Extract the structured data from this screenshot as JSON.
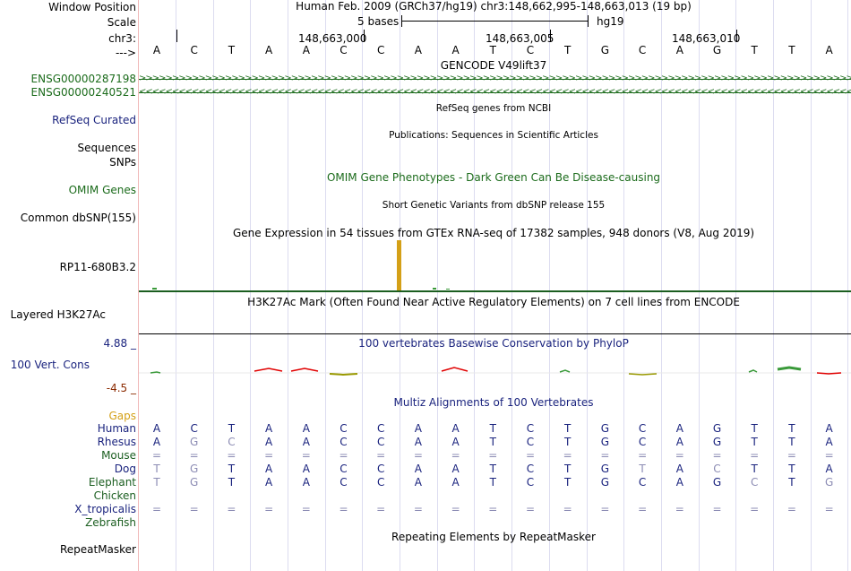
{
  "header": {
    "window_position_label": "Window Position",
    "scale_label": "Scale",
    "chrom_label": "chr3:",
    "arrow_label": "--->",
    "assembly_text": "Human Feb. 2009 (GRCh37/hg19)   chr3:148,662,995-148,663,013 (19 bp)",
    "scale_text": "5 bases",
    "assembly_short": "hg19",
    "positions": [
      "148,663,000",
      "148,663,005",
      "148,663,010"
    ]
  },
  "bases": [
    "A",
    "C",
    "T",
    "A",
    "A",
    "C",
    "C",
    "A",
    "A",
    "T",
    "C",
    "T",
    "G",
    "C",
    "A",
    "G",
    "T",
    "T",
    "A"
  ],
  "tracks": {
    "gencode_title": "GENCODE V49lift37",
    "gencode_genes": [
      {
        "name": "ENSG00000287198",
        "strand": ">"
      },
      {
        "name": "ENSG00000240521",
        "strand": "<"
      }
    ],
    "refseq_label": "RefSeq Curated",
    "refseq_title": "RefSeq genes from NCBI",
    "sequences_label": "Sequences",
    "publications_title": "Publications: Sequences in Scientific Articles",
    "snps_label": "SNPs",
    "omim_label": "OMIM Genes",
    "omim_title": "OMIM Gene Phenotypes - Dark Green Can Be Disease-causing",
    "dbsnp_label": "Common dbSNP(155)",
    "dbsnp_title": "Short Genetic Variants from dbSNP release 155",
    "gtex_title": "Gene Expression in 54 tissues from GTEx RNA-seq of 17382 samples, 948 donors (V8, Aug 2019)",
    "gtex_gene_label": "RP11-680B3.2",
    "h3k27ac_title": "H3K27Ac Mark (Often Found Near Active Regulatory Elements) on 7 cell lines from ENCODE",
    "h3k27ac_label": "Layered H3K27Ac",
    "phylop_max": "4.88 _",
    "phylop_min": "-4.5 _",
    "phylop_label": "100 Vert. Cons",
    "phylop_title": "100 vertebrates Basewise Conservation by PhyloP",
    "multiz_title": "Multiz Alignments of 100 Vertebrates",
    "gaps_label": "Gaps",
    "repeatmasker_label": "RepeatMasker",
    "repeatmasker_title": "Repeating Elements by RepeatMasker"
  },
  "species": [
    {
      "name": "Human",
      "color": "#1a237e",
      "seq": [
        "A",
        "C",
        "T",
        "A",
        "A",
        "C",
        "C",
        "A",
        "A",
        "T",
        "C",
        "T",
        "G",
        "C",
        "A",
        "G",
        "T",
        "T",
        "A"
      ]
    },
    {
      "name": "Rhesus",
      "color": "#1a237e",
      "seq": [
        "A",
        "G",
        "C",
        "A",
        "A",
        "C",
        "C",
        "A",
        "A",
        "T",
        "C",
        "T",
        "G",
        "C",
        "A",
        "G",
        "T",
        "T",
        "A"
      ]
    },
    {
      "name": "Mouse",
      "color": "#1b5e20",
      "seq": [
        "=",
        "=",
        "=",
        "=",
        "=",
        "=",
        "=",
        "=",
        "=",
        "=",
        "=",
        "=",
        "=",
        "=",
        "=",
        "=",
        "=",
        "=",
        "="
      ]
    },
    {
      "name": "Dog",
      "color": "#1a237e",
      "seq": [
        "T",
        "G",
        "T",
        "A",
        "A",
        "C",
        "C",
        "A",
        "A",
        "T",
        "C",
        "T",
        "G",
        "T",
        "A",
        "C",
        "T",
        "T",
        "A"
      ]
    },
    {
      "name": "Elephant",
      "color": "#1b5e20",
      "seq": [
        "T",
        "G",
        "T",
        "A",
        "A",
        "C",
        "C",
        "A",
        "A",
        "T",
        "C",
        "T",
        "G",
        "C",
        "A",
        "G",
        "C",
        "T",
        "G"
      ]
    },
    {
      "name": "Chicken",
      "color": "#1b5e20",
      "seq": []
    },
    {
      "name": "X_tropicalis",
      "color": "#1a237e",
      "seq": [
        "=",
        "=",
        "=",
        "=",
        "=",
        "=",
        "=",
        "=",
        "=",
        "=",
        "=",
        "=",
        "=",
        "=",
        "=",
        "=",
        "=",
        "=",
        "="
      ]
    },
    {
      "name": "Zebrafish",
      "color": "#1b5e20",
      "seq": []
    }
  ],
  "colors": {
    "gene_green": "#1b6b1b",
    "gtex_bar": "#d4a017",
    "phylop_pos": "#e00000",
    "phylop_neg": "#999900",
    "navy": "#1a237e",
    "gaps": "#d4a017"
  }
}
